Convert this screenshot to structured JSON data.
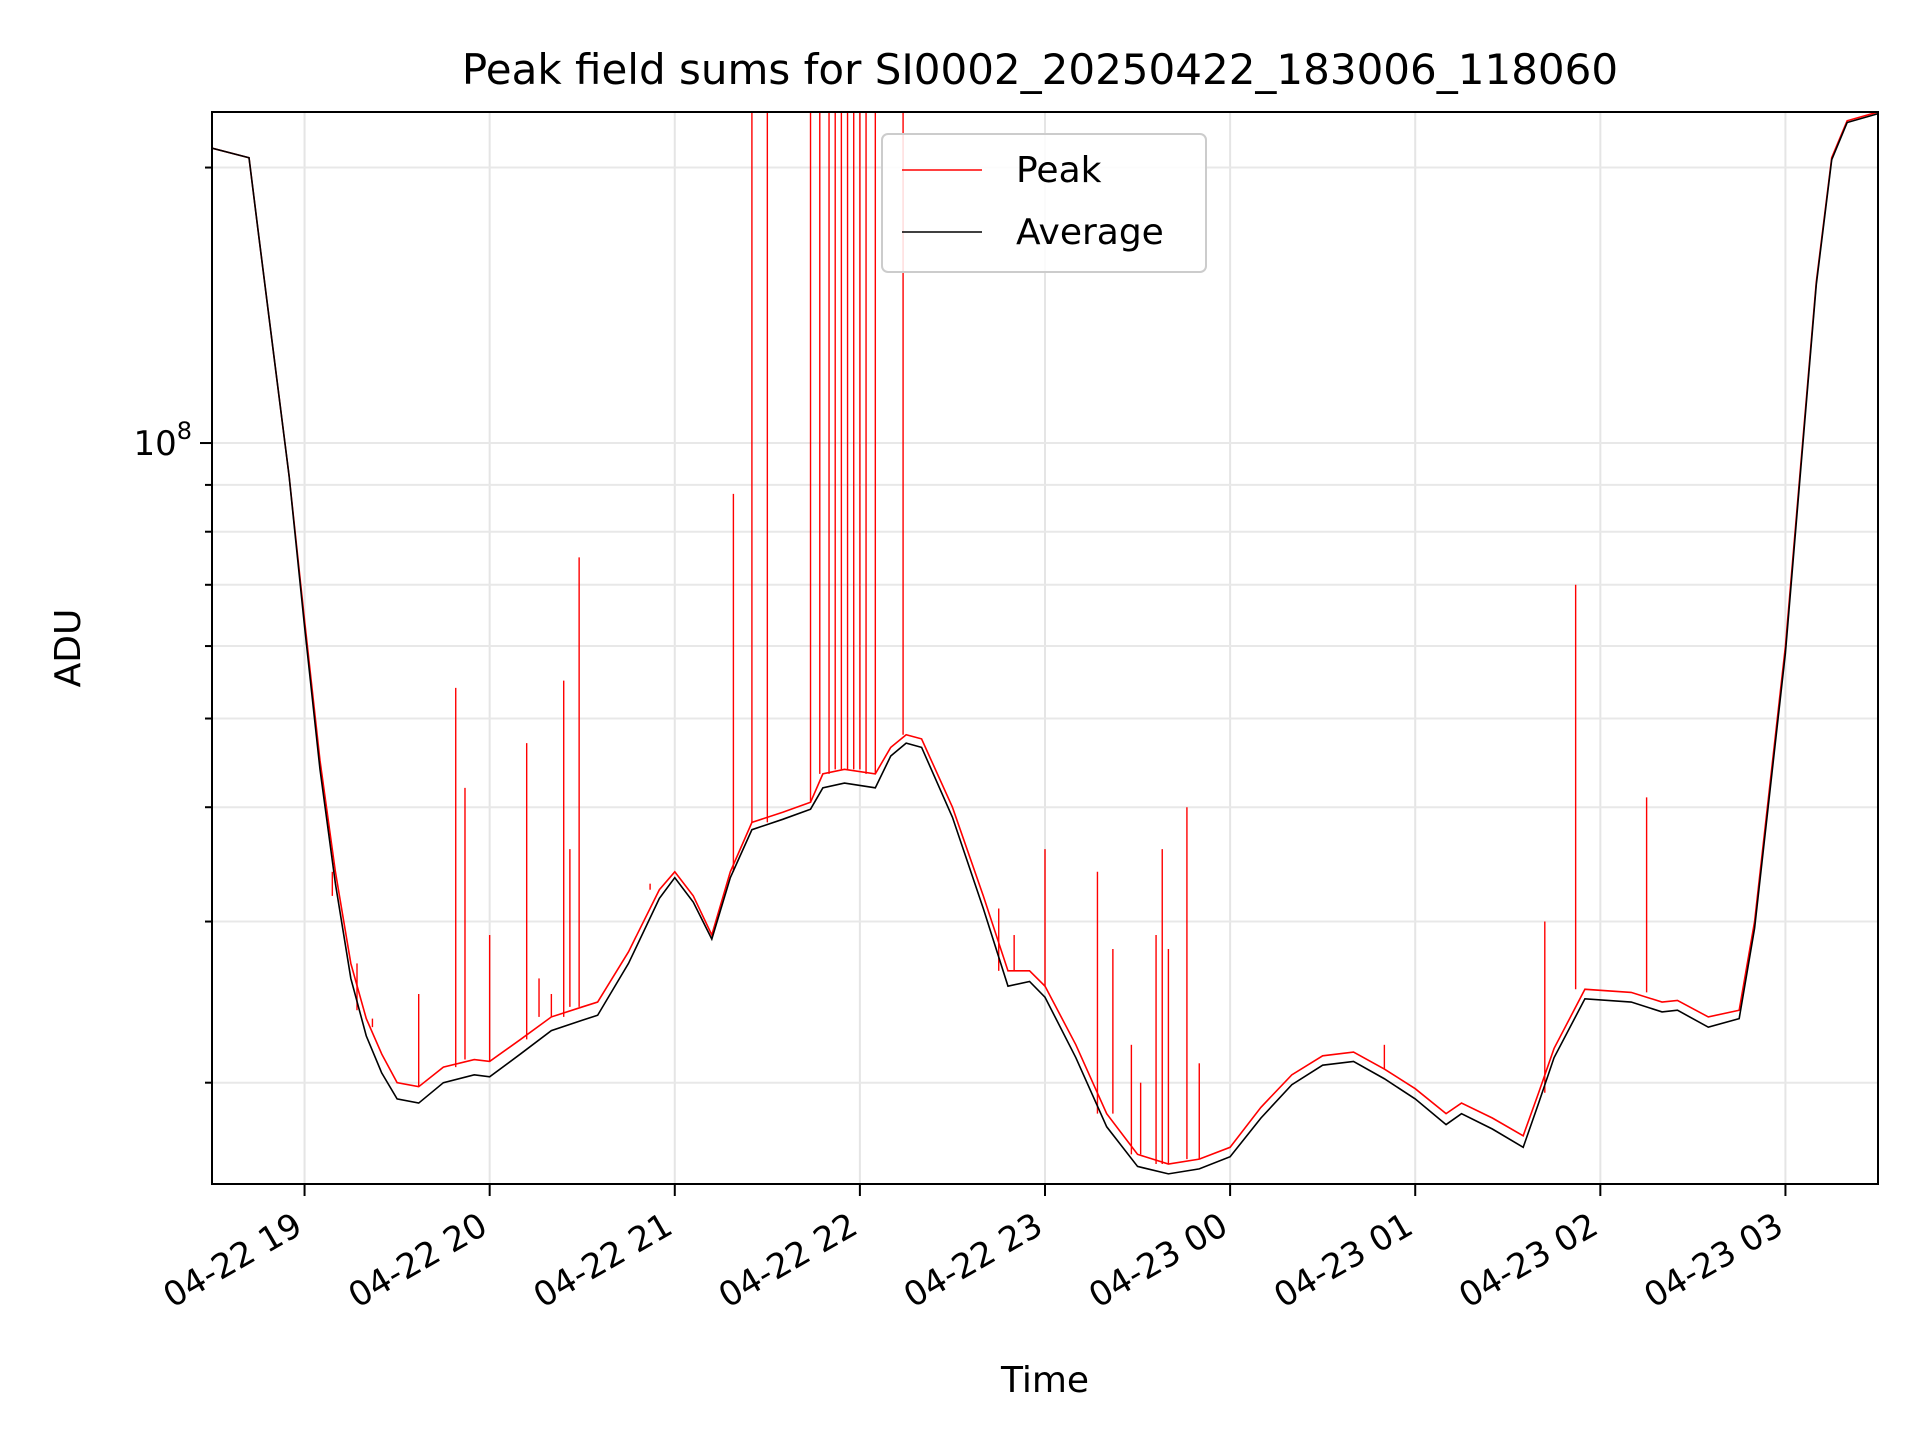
{
  "chart_data": {
    "type": "line",
    "title": "Peak field sums for SI0002_20250422_183006_118060",
    "xlabel": "Time",
    "ylabel": "ADU",
    "y_scale": "log",
    "grid": true,
    "legend_position": "upper center",
    "xlim": [
      "2025-04-22 18:30",
      "2025-04-23 03:30"
    ],
    "ylim": [
      15500000,
      230000000
    ],
    "x_tick_labels": [
      {
        "t": "2025-04-22 19:00",
        "label": "04-22 19"
      },
      {
        "t": "2025-04-22 20:00",
        "label": "04-22 20"
      },
      {
        "t": "2025-04-22 21:00",
        "label": "04-22 21"
      },
      {
        "t": "2025-04-22 22:00",
        "label": "04-22 22"
      },
      {
        "t": "2025-04-22 23:00",
        "label": "04-22 23"
      },
      {
        "t": "2025-04-23 00:00",
        "label": "04-23 00"
      },
      {
        "t": "2025-04-23 01:00",
        "label": "04-23 01"
      },
      {
        "t": "2025-04-23 02:00",
        "label": "04-23 02"
      },
      {
        "t": "2025-04-23 03:00",
        "label": "04-23 03"
      }
    ],
    "y_tick_labels": [
      {
        "value": 100000000,
        "base": "10",
        "exp": "8"
      }
    ],
    "series": [
      {
        "name": "Peak",
        "color": "#ff0000",
        "points": [
          [
            "2025-04-22 18:30",
            210000000
          ],
          [
            "2025-04-22 18:42",
            205000000
          ],
          [
            "2025-04-22 18:45",
            170000000
          ],
          [
            "2025-04-22 18:50",
            125000000
          ],
          [
            "2025-04-22 18:55",
            92000000
          ],
          [
            "2025-04-22 19:00",
            64000000
          ],
          [
            "2025-04-22 19:05",
            45000000
          ],
          [
            "2025-04-22 19:10",
            34000000
          ],
          [
            "2025-04-22 19:15",
            27000000
          ],
          [
            "2025-04-22 19:20",
            23500000
          ],
          [
            "2025-04-22 19:25",
            21500000
          ],
          [
            "2025-04-22 19:30",
            20000000
          ],
          [
            "2025-04-22 19:37",
            19800000
          ],
          [
            "2025-04-22 19:45",
            20800000
          ],
          [
            "2025-04-22 19:55",
            21200000
          ],
          [
            "2025-04-22 20:00",
            21100000
          ],
          [
            "2025-04-22 20:10",
            22300000
          ],
          [
            "2025-04-22 20:20",
            23600000
          ],
          [
            "2025-04-22 20:30",
            24200000
          ],
          [
            "2025-04-22 20:35",
            24500000
          ],
          [
            "2025-04-22 20:45",
            27800000
          ],
          [
            "2025-04-22 20:55",
            32500000
          ],
          [
            "2025-04-22 21:00",
            34000000
          ],
          [
            "2025-04-22 21:06",
            32000000
          ],
          [
            "2025-04-22 21:12",
            29000000
          ],
          [
            "2025-04-22 21:18",
            34000000
          ],
          [
            "2025-04-22 21:25",
            38500000
          ],
          [
            "2025-04-22 21:35",
            39500000
          ],
          [
            "2025-04-22 21:44",
            40500000
          ],
          [
            "2025-04-22 21:48",
            43500000
          ],
          [
            "2025-04-22 21:55",
            44000000
          ],
          [
            "2025-04-22 22:05",
            43500000
          ],
          [
            "2025-04-22 22:10",
            46500000
          ],
          [
            "2025-04-22 22:15",
            48000000
          ],
          [
            "2025-04-22 22:20",
            47500000
          ],
          [
            "2025-04-22 22:30",
            40000000
          ],
          [
            "2025-04-22 22:40",
            32000000
          ],
          [
            "2025-04-22 22:48",
            26500000
          ],
          [
            "2025-04-22 22:55",
            26500000
          ],
          [
            "2025-04-22 23:00",
            25500000
          ],
          [
            "2025-04-22 23:10",
            22000000
          ],
          [
            "2025-04-22 23:20",
            18500000
          ],
          [
            "2025-04-22 23:30",
            16700000
          ],
          [
            "2025-04-22 23:40",
            16300000
          ],
          [
            "2025-04-22 23:50",
            16500000
          ],
          [
            "2025-04-23 00:00",
            17000000
          ],
          [
            "2025-04-23 00:10",
            18800000
          ],
          [
            "2025-04-23 00:20",
            20400000
          ],
          [
            "2025-04-23 00:30",
            21400000
          ],
          [
            "2025-04-23 00:40",
            21600000
          ],
          [
            "2025-04-23 00:50",
            20700000
          ],
          [
            "2025-04-23 01:00",
            19700000
          ],
          [
            "2025-04-23 01:10",
            18500000
          ],
          [
            "2025-04-23 01:15",
            19000000
          ],
          [
            "2025-04-23 01:25",
            18300000
          ],
          [
            "2025-04-23 01:35",
            17500000
          ],
          [
            "2025-04-23 01:40",
            19500000
          ],
          [
            "2025-04-23 01:45",
            21800000
          ],
          [
            "2025-04-23 01:55",
            25300000
          ],
          [
            "2025-04-23 02:10",
            25100000
          ],
          [
            "2025-04-23 02:20",
            24500000
          ],
          [
            "2025-04-23 02:25",
            24600000
          ],
          [
            "2025-04-23 02:35",
            23600000
          ],
          [
            "2025-04-23 02:45",
            24000000
          ],
          [
            "2025-04-23 02:50",
            30000000
          ],
          [
            "2025-04-23 03:00",
            60000000
          ],
          [
            "2025-04-23 03:05",
            95000000
          ],
          [
            "2025-04-23 03:10",
            150000000
          ],
          [
            "2025-04-23 03:15",
            205000000
          ],
          [
            "2025-04-23 03:20",
            225000000
          ],
          [
            "2025-04-23 03:30",
            230000000
          ]
        ]
      },
      {
        "name": "Average",
        "color": "#000000",
        "points": [
          [
            "2025-04-22 18:30",
            210000000
          ],
          [
            "2025-04-22 18:42",
            205000000
          ],
          [
            "2025-04-22 18:45",
            170000000
          ],
          [
            "2025-04-22 18:50",
            125000000
          ],
          [
            "2025-04-22 18:55",
            92000000
          ],
          [
            "2025-04-22 19:00",
            63000000
          ],
          [
            "2025-04-22 19:05",
            44000000
          ],
          [
            "2025-04-22 19:10",
            33000000
          ],
          [
            "2025-04-22 19:15",
            26000000
          ],
          [
            "2025-04-22 19:20",
            22500000
          ],
          [
            "2025-04-22 19:25",
            20500000
          ],
          [
            "2025-04-22 19:30",
            19200000
          ],
          [
            "2025-04-22 19:37",
            19000000
          ],
          [
            "2025-04-22 19:45",
            20000000
          ],
          [
            "2025-04-22 19:55",
            20400000
          ],
          [
            "2025-04-22 20:00",
            20300000
          ],
          [
            "2025-04-22 20:10",
            21500000
          ],
          [
            "2025-04-22 20:20",
            22800000
          ],
          [
            "2025-04-22 20:30",
            23400000
          ],
          [
            "2025-04-22 20:35",
            23700000
          ],
          [
            "2025-04-22 20:45",
            27000000
          ],
          [
            "2025-04-22 20:55",
            31800000
          ],
          [
            "2025-04-22 21:00",
            33500000
          ],
          [
            "2025-04-22 21:06",
            31500000
          ],
          [
            "2025-04-22 21:12",
            28700000
          ],
          [
            "2025-04-22 21:18",
            33500000
          ],
          [
            "2025-04-22 21:25",
            37800000
          ],
          [
            "2025-04-22 21:35",
            38800000
          ],
          [
            "2025-04-22 21:44",
            39800000
          ],
          [
            "2025-04-22 21:48",
            42000000
          ],
          [
            "2025-04-22 21:55",
            42500000
          ],
          [
            "2025-04-22 22:05",
            42000000
          ],
          [
            "2025-04-22 22:10",
            45500000
          ],
          [
            "2025-04-22 22:15",
            47000000
          ],
          [
            "2025-04-22 22:20",
            46500000
          ],
          [
            "2025-04-22 22:30",
            39000000
          ],
          [
            "2025-04-22 22:40",
            31000000
          ],
          [
            "2025-04-22 22:48",
            25500000
          ],
          [
            "2025-04-22 22:55",
            25800000
          ],
          [
            "2025-04-22 23:00",
            24800000
          ],
          [
            "2025-04-22 23:10",
            21300000
          ],
          [
            "2025-04-22 23:20",
            17900000
          ],
          [
            "2025-04-22 23:30",
            16200000
          ],
          [
            "2025-04-22 23:40",
            15900000
          ],
          [
            "2025-04-22 23:50",
            16100000
          ],
          [
            "2025-04-23 00:00",
            16600000
          ],
          [
            "2025-04-23 00:10",
            18300000
          ],
          [
            "2025-04-23 00:20",
            19900000
          ],
          [
            "2025-04-23 00:30",
            20900000
          ],
          [
            "2025-04-23 00:40",
            21100000
          ],
          [
            "2025-04-23 00:50",
            20200000
          ],
          [
            "2025-04-23 01:00",
            19200000
          ],
          [
            "2025-04-23 01:10",
            18000000
          ],
          [
            "2025-04-23 01:15",
            18500000
          ],
          [
            "2025-04-23 01:25",
            17800000
          ],
          [
            "2025-04-23 01:35",
            17000000
          ],
          [
            "2025-04-23 01:40",
            19000000
          ],
          [
            "2025-04-23 01:45",
            21300000
          ],
          [
            "2025-04-23 01:55",
            24700000
          ],
          [
            "2025-04-23 02:10",
            24500000
          ],
          [
            "2025-04-23 02:20",
            23900000
          ],
          [
            "2025-04-23 02:25",
            24000000
          ],
          [
            "2025-04-23 02:35",
            23000000
          ],
          [
            "2025-04-23 02:45",
            23500000
          ],
          [
            "2025-04-23 02:50",
            29500000
          ],
          [
            "2025-04-23 03:00",
            59000000
          ],
          [
            "2025-04-23 03:05",
            94000000
          ],
          [
            "2025-04-23 03:10",
            149000000
          ],
          [
            "2025-04-23 03:15",
            204000000
          ],
          [
            "2025-04-23 03:20",
            224000000
          ],
          [
            "2025-04-23 03:30",
            229000000
          ]
        ]
      }
    ],
    "peak_spikes": [
      [
        "2025-04-22 19:09",
        32000000
      ],
      [
        "2025-04-22 19:17",
        24000000
      ],
      [
        "2025-04-22 19:22",
        23000000
      ],
      [
        "2025-04-22 19:37",
        25000000
      ],
      [
        "2025-04-22 19:49",
        54000000
      ],
      [
        "2025-04-22 19:52",
        42000000
      ],
      [
        "2025-04-22 20:00",
        29000000
      ],
      [
        "2025-04-22 20:12",
        47000000
      ],
      [
        "2025-04-22 20:16",
        26000000
      ],
      [
        "2025-04-22 20:20",
        25000000
      ],
      [
        "2025-04-22 20:24",
        55000000
      ],
      [
        "2025-04-22 20:26",
        36000000
      ],
      [
        "2025-04-22 20:29",
        75000000
      ],
      [
        "2025-04-22 20:52",
        33000000
      ],
      [
        "2025-04-22 21:19",
        88000000
      ],
      [
        "2025-04-22 21:25",
        230000000
      ],
      [
        "2025-04-22 21:30",
        230000000
      ],
      [
        "2025-04-22 21:44",
        230000000
      ],
      [
        "2025-04-22 21:47",
        230000000
      ],
      [
        "2025-04-22 21:50",
        230000000
      ],
      [
        "2025-04-22 21:52",
        230000000
      ],
      [
        "2025-04-22 21:54",
        230000000
      ],
      [
        "2025-04-22 21:56",
        230000000
      ],
      [
        "2025-04-22 21:58",
        230000000
      ],
      [
        "2025-04-22 22:00",
        230000000
      ],
      [
        "2025-04-22 22:02",
        230000000
      ],
      [
        "2025-04-22 22:05",
        230000000
      ],
      [
        "2025-04-22 22:14",
        230000000
      ],
      [
        "2025-04-22 22:45",
        31000000
      ],
      [
        "2025-04-22 22:50",
        29000000
      ],
      [
        "2025-04-22 23:00",
        36000000
      ],
      [
        "2025-04-22 23:17",
        34000000
      ],
      [
        "2025-04-22 23:22",
        28000000
      ],
      [
        "2025-04-22 23:28",
        22000000
      ],
      [
        "2025-04-22 23:31",
        20000000
      ],
      [
        "2025-04-22 23:36",
        29000000
      ],
      [
        "2025-04-22 23:38",
        36000000
      ],
      [
        "2025-04-22 23:40",
        28000000
      ],
      [
        "2025-04-22 23:46",
        40000000
      ],
      [
        "2025-04-22 23:50",
        21000000
      ],
      [
        "2025-04-23 00:50",
        22000000
      ],
      [
        "2025-04-23 01:42",
        30000000
      ],
      [
        "2025-04-23 01:52",
        70000000
      ],
      [
        "2025-04-23 02:15",
        41000000
      ]
    ]
  }
}
